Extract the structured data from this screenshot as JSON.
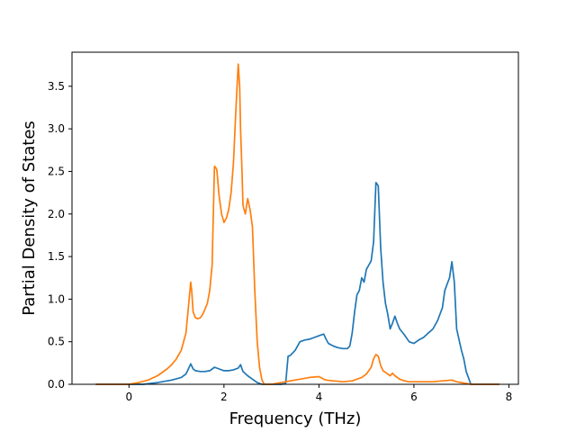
{
  "chart_data": {
    "type": "line",
    "title": "",
    "xlabel": "Frequency (THz)",
    "ylabel": "Partial Density of States",
    "xlim": [
      -1.2,
      8.2
    ],
    "ylim": [
      0,
      3.9
    ],
    "xticks": [
      0,
      2,
      4,
      6,
      8
    ],
    "xtick_labels": [
      "0",
      "2",
      "4",
      "6",
      "8"
    ],
    "yticks": [
      0,
      0.5,
      1.0,
      1.5,
      2.0,
      2.5,
      3.0,
      3.5
    ],
    "ytick_labels": [
      "0.0",
      "0.5",
      "1.0",
      "1.5",
      "2.0",
      "2.5",
      "3.0",
      "3.5"
    ],
    "grid": false,
    "legend": "none",
    "series": [
      {
        "color": "#1f77b4",
        "x": [
          -0.7,
          0.0,
          0.3,
          0.6,
          0.9,
          1.1,
          1.2,
          1.25,
          1.3,
          1.35,
          1.4,
          1.5,
          1.6,
          1.7,
          1.75,
          1.8,
          1.85,
          1.9,
          2.0,
          2.1,
          2.2,
          2.3,
          2.35,
          2.4,
          2.5,
          2.6,
          2.7,
          2.8,
          2.9,
          3.0,
          3.1,
          3.2,
          3.3,
          3.35,
          3.4,
          3.5,
          3.6,
          3.7,
          3.8,
          3.9,
          4.0,
          4.1,
          4.15,
          4.2,
          4.3,
          4.4,
          4.5,
          4.6,
          4.65,
          4.7,
          4.75,
          4.8,
          4.85,
          4.9,
          4.95,
          5.0,
          5.05,
          5.1,
          5.15,
          5.2,
          5.25,
          5.3,
          5.35,
          5.4,
          5.45,
          5.5,
          5.55,
          5.6,
          5.65,
          5.7,
          5.8,
          5.9,
          6.0,
          6.1,
          6.2,
          6.3,
          6.4,
          6.5,
          6.6,
          6.65,
          6.7,
          6.75,
          6.8,
          6.85,
          6.9,
          7.0,
          7.05,
          7.1,
          7.2,
          7.5,
          7.8
        ],
        "y": [
          0.0,
          0.0,
          0.0,
          0.02,
          0.05,
          0.08,
          0.12,
          0.18,
          0.24,
          0.18,
          0.16,
          0.15,
          0.15,
          0.16,
          0.18,
          0.2,
          0.19,
          0.18,
          0.16,
          0.16,
          0.17,
          0.19,
          0.23,
          0.15,
          0.1,
          0.06,
          0.02,
          0.0,
          0.0,
          0.0,
          0.0,
          0.0,
          0.01,
          0.33,
          0.34,
          0.4,
          0.5,
          0.52,
          0.53,
          0.55,
          0.57,
          0.59,
          0.53,
          0.48,
          0.45,
          0.43,
          0.42,
          0.42,
          0.45,
          0.6,
          0.85,
          1.05,
          1.1,
          1.25,
          1.2,
          1.35,
          1.4,
          1.45,
          1.67,
          2.37,
          2.33,
          1.6,
          1.2,
          0.95,
          0.82,
          0.65,
          0.72,
          0.8,
          0.72,
          0.65,
          0.58,
          0.5,
          0.48,
          0.52,
          0.55,
          0.6,
          0.65,
          0.75,
          0.9,
          1.1,
          1.18,
          1.25,
          1.44,
          1.2,
          0.65,
          0.4,
          0.3,
          0.15,
          0.0,
          0.0,
          0.0
        ]
      },
      {
        "color": "#ff7f0e",
        "x": [
          -0.7,
          -0.2,
          0.0,
          0.2,
          0.4,
          0.6,
          0.8,
          0.9,
          1.0,
          1.1,
          1.2,
          1.25,
          1.3,
          1.32,
          1.35,
          1.4,
          1.45,
          1.5,
          1.55,
          1.6,
          1.65,
          1.7,
          1.75,
          1.8,
          1.82,
          1.85,
          1.9,
          1.95,
          2.0,
          2.05,
          2.1,
          2.15,
          2.2,
          2.25,
          2.3,
          2.33,
          2.35,
          2.38,
          2.4,
          2.45,
          2.5,
          2.55,
          2.6,
          2.65,
          2.7,
          2.75,
          2.8,
          2.85,
          2.9,
          3.0,
          3.2,
          3.4,
          3.6,
          3.8,
          4.0,
          4.1,
          4.15,
          4.3,
          4.5,
          4.7,
          4.9,
          5.0,
          5.1,
          5.15,
          5.2,
          5.25,
          5.3,
          5.35,
          5.4,
          5.5,
          5.55,
          5.6,
          5.7,
          5.8,
          5.9,
          6.0,
          6.2,
          6.4,
          6.6,
          6.8,
          6.9,
          7.0,
          7.2,
          7.5,
          7.8
        ],
        "y": [
          0.0,
          0.0,
          0.0,
          0.02,
          0.05,
          0.1,
          0.18,
          0.23,
          0.3,
          0.4,
          0.6,
          0.9,
          1.2,
          1.1,
          0.85,
          0.78,
          0.77,
          0.78,
          0.82,
          0.88,
          0.95,
          1.1,
          1.4,
          2.56,
          2.55,
          2.52,
          2.2,
          2.0,
          1.9,
          1.95,
          2.05,
          2.25,
          2.6,
          3.2,
          3.76,
          3.5,
          3.0,
          2.5,
          2.1,
          2.0,
          2.18,
          2.05,
          1.85,
          1.1,
          0.5,
          0.2,
          0.05,
          0.0,
          0.0,
          0.0,
          0.02,
          0.04,
          0.06,
          0.08,
          0.09,
          0.06,
          0.05,
          0.04,
          0.03,
          0.04,
          0.08,
          0.12,
          0.2,
          0.3,
          0.35,
          0.33,
          0.22,
          0.16,
          0.14,
          0.1,
          0.13,
          0.1,
          0.06,
          0.04,
          0.03,
          0.03,
          0.03,
          0.03,
          0.04,
          0.05,
          0.03,
          0.02,
          0.0,
          0.0,
          0.0
        ]
      }
    ]
  }
}
